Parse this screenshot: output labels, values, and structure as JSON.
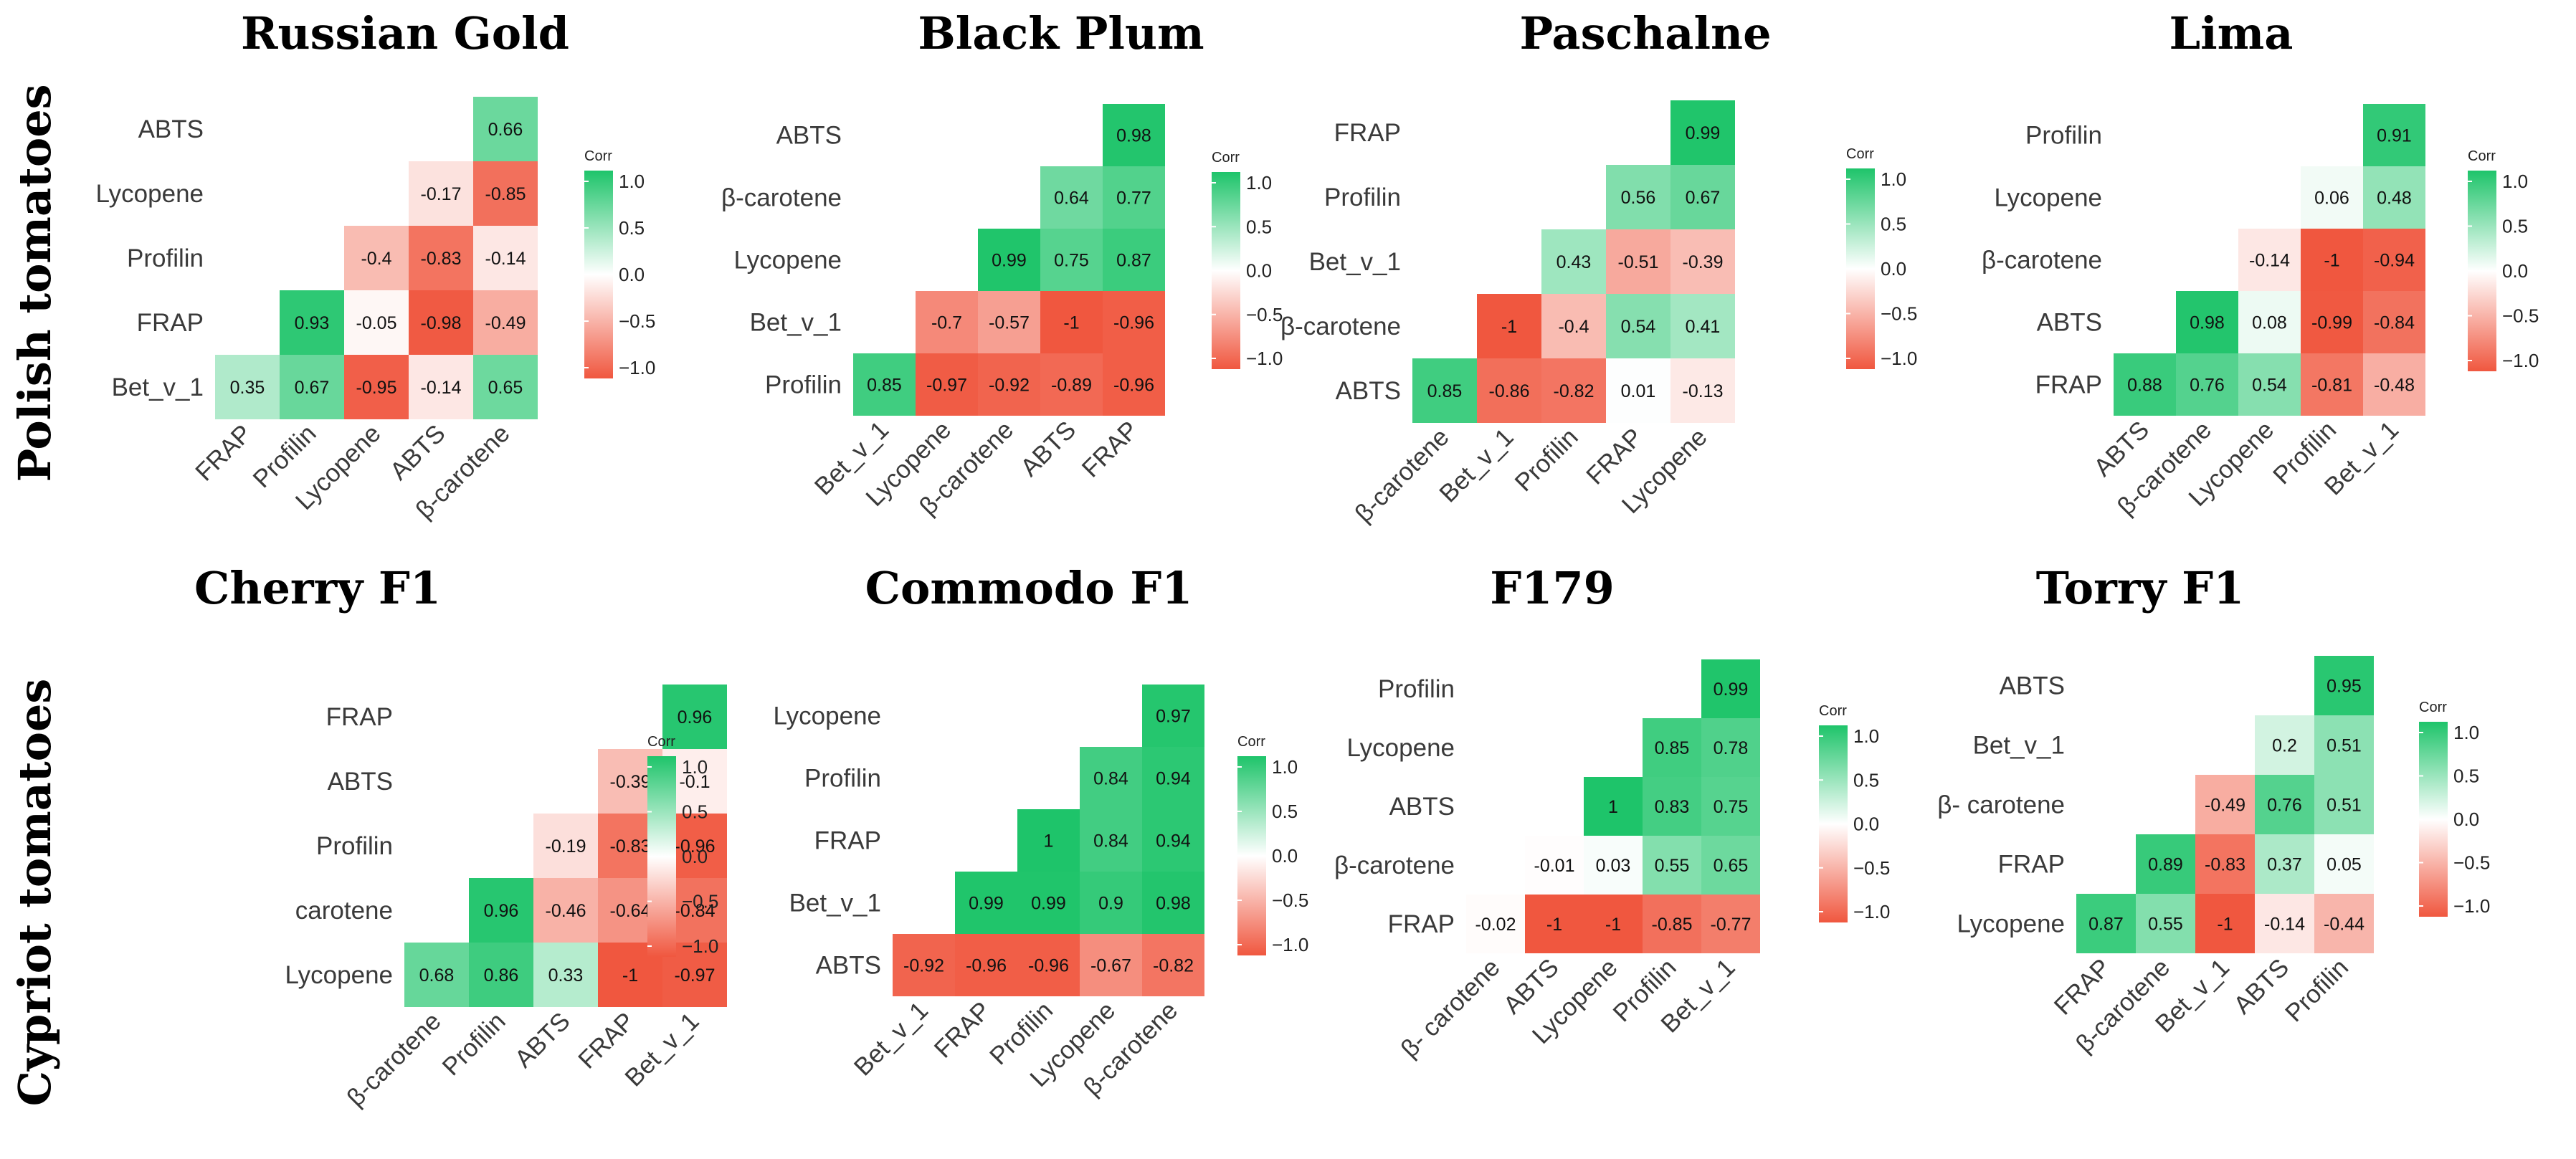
{
  "figure": {
    "row_labels": [
      "Polish tomatoes",
      "Cypriot tomatoes"
    ],
    "legend_title": "Corr",
    "legend_ticks": [
      "1.0",
      "0.5",
      "0.0",
      "−0.5",
      "−1.0"
    ],
    "colors": {
      "positive": "#1ec46a",
      "neutral": "#ffffff",
      "negative": "#f0573f"
    }
  },
  "chart_data": [
    {
      "type": "heatmap",
      "title": "Russian Gold",
      "row": "Polish tomatoes",
      "rows": [
        "ABTS",
        "Lycopene",
        "Profilin",
        "FRAP",
        "Bet_v_1"
      ],
      "cols": [
        "FRAP",
        "Profilin",
        "Lycopene",
        "ABTS",
        "β-carotene"
      ],
      "values": [
        [
          null,
          null,
          null,
          null,
          0.66
        ],
        [
          null,
          null,
          null,
          -0.17,
          -0.85
        ],
        [
          null,
          null,
          -0.4,
          -0.83,
          -0.14
        ],
        [
          null,
          0.93,
          -0.05,
          -0.98,
          -0.49
        ],
        [
          0.35,
          0.67,
          -0.95,
          -0.14,
          0.65
        ]
      ],
      "labels": [
        [
          null,
          null,
          null,
          null,
          "0.66"
        ],
        [
          null,
          null,
          null,
          "-0.17",
          "-0.85"
        ],
        [
          null,
          null,
          "-0.4",
          "-0.83",
          "-0.14"
        ],
        [
          null,
          "0.93",
          "-0.05",
          "-0.98",
          "-0.49"
        ],
        [
          "0.35",
          "0.67",
          "-0.95",
          "-0.14",
          "0.65"
        ]
      ],
      "color_range": [
        -1,
        1
      ]
    },
    {
      "type": "heatmap",
      "title": "Black Plum",
      "row": "Polish tomatoes",
      "rows": [
        "ABTS",
        "β-carotene",
        "Lycopene",
        "Bet_v_1",
        "Profilin"
      ],
      "cols": [
        "Bet_v_1",
        "Lycopene",
        "β-carotene",
        "ABTS",
        "FRAP"
      ],
      "values": [
        [
          null,
          null,
          null,
          null,
          0.98
        ],
        [
          null,
          null,
          null,
          0.64,
          0.77
        ],
        [
          null,
          null,
          0.99,
          0.75,
          0.87
        ],
        [
          null,
          -0.7,
          -0.57,
          -1,
          -0.96
        ],
        [
          0.85,
          -0.97,
          -0.92,
          -0.89,
          -0.96
        ]
      ],
      "labels": [
        [
          null,
          null,
          null,
          null,
          "0.98"
        ],
        [
          null,
          null,
          null,
          "0.64",
          "0.77"
        ],
        [
          null,
          null,
          "0.99",
          "0.75",
          "0.87"
        ],
        [
          null,
          "-0.7",
          "-0.57",
          "-1",
          "-0.96"
        ],
        [
          "0.85",
          "-0.97",
          "-0.92",
          "-0.89",
          "-0.96"
        ]
      ],
      "color_range": [
        -1,
        1
      ]
    },
    {
      "type": "heatmap",
      "title": "Paschalne",
      "row": "Polish tomatoes",
      "rows": [
        "FRAP",
        "Profilin",
        "Bet_v_1",
        "β-carotene",
        "ABTS"
      ],
      "cols": [
        "β-carotene",
        "Bet_v_1",
        "Profilin",
        "FRAP",
        "Lycopene"
      ],
      "values": [
        [
          null,
          null,
          null,
          null,
          0.99
        ],
        [
          null,
          null,
          null,
          0.56,
          0.67
        ],
        [
          null,
          null,
          0.43,
          -0.51,
          -0.39
        ],
        [
          null,
          -1,
          -0.4,
          0.54,
          0.41
        ],
        [
          0.85,
          -0.86,
          -0.82,
          0.01,
          -0.13
        ]
      ],
      "labels": [
        [
          null,
          null,
          null,
          null,
          "0.99"
        ],
        [
          null,
          null,
          null,
          "0.56",
          "0.67"
        ],
        [
          null,
          null,
          "0.43",
          "-0.51",
          "-0.39"
        ],
        [
          null,
          "-1",
          "-0.4",
          "0.54",
          "0.41"
        ],
        [
          "0.85",
          "-0.86",
          "-0.82",
          "0.01",
          "-0.13"
        ]
      ],
      "color_range": [
        -1,
        1
      ]
    },
    {
      "type": "heatmap",
      "title": "Lima",
      "row": "Polish tomatoes",
      "rows": [
        "Profilin",
        "Lycopene",
        "β-carotene",
        "ABTS",
        "FRAP"
      ],
      "cols": [
        "ABTS",
        "β-carotene",
        "Lycopene",
        "Profilin",
        "Bet_v_1"
      ],
      "values": [
        [
          null,
          null,
          null,
          null,
          0.91
        ],
        [
          null,
          null,
          null,
          0.06,
          0.48
        ],
        [
          null,
          null,
          -0.14,
          -1,
          -0.94
        ],
        [
          null,
          0.98,
          0.08,
          -0.99,
          -0.84
        ],
        [
          0.88,
          0.76,
          0.54,
          -0.81,
          -0.48
        ]
      ],
      "labels": [
        [
          null,
          null,
          null,
          null,
          "0.91"
        ],
        [
          null,
          null,
          null,
          "0.06",
          "0.48"
        ],
        [
          null,
          null,
          "-0.14",
          "-1",
          "-0.94"
        ],
        [
          null,
          "0.98",
          "0.08",
          "-0.99",
          "-0.84"
        ],
        [
          "0.88",
          "0.76",
          "0.54",
          "-0.81",
          "-0.48"
        ]
      ],
      "color_range": [
        -1,
        1
      ]
    },
    {
      "type": "heatmap",
      "title": "Cherry F1",
      "row": "Cypriot tomatoes",
      "rows": [
        "FRAP",
        "ABTS",
        "Profilin",
        "carotene",
        "Lycopene"
      ],
      "cols": [
        "β-carotene",
        "Profilin",
        "ABTS",
        "FRAP",
        "Bet_v_1"
      ],
      "values": [
        [
          null,
          null,
          null,
          null,
          0.96
        ],
        [
          null,
          null,
          null,
          -0.39,
          -0.1
        ],
        [
          null,
          null,
          -0.19,
          -0.83,
          -0.96
        ],
        [
          null,
          0.96,
          -0.46,
          -0.64,
          -0.84
        ],
        [
          0.68,
          0.86,
          0.33,
          -1,
          -0.97
        ]
      ],
      "labels": [
        [
          null,
          null,
          null,
          null,
          "0.96"
        ],
        [
          null,
          null,
          null,
          "-0.39",
          "-0.1"
        ],
        [
          null,
          null,
          "-0.19",
          "-0.83",
          "-0.96"
        ],
        [
          null,
          "0.96",
          "-0.46",
          "-0.64",
          "-0.84"
        ],
        [
          "0.68",
          "0.86",
          "0.33",
          "-1",
          "-0.97"
        ]
      ],
      "color_range": [
        -1,
        1
      ]
    },
    {
      "type": "heatmap",
      "title": "Commodo F1",
      "row": "Cypriot tomatoes",
      "rows": [
        "Lycopene",
        "Profilin",
        "FRAP",
        "Bet_v_1",
        "ABTS"
      ],
      "cols": [
        "Bet_v_1",
        "FRAP",
        "Profilin",
        "Lycopene",
        "β-carotene"
      ],
      "values": [
        [
          null,
          null,
          null,
          null,
          0.97
        ],
        [
          null,
          null,
          null,
          0.84,
          0.94
        ],
        [
          null,
          null,
          1,
          0.84,
          0.94
        ],
        [
          null,
          0.99,
          0.99,
          0.9,
          0.98
        ],
        [
          -0.92,
          -0.96,
          -0.96,
          -0.67,
          -0.82
        ]
      ],
      "labels": [
        [
          null,
          null,
          null,
          null,
          "0.97"
        ],
        [
          null,
          null,
          null,
          "0.84",
          "0.94"
        ],
        [
          null,
          null,
          "1",
          "0.84",
          "0.94"
        ],
        [
          null,
          "0.99",
          "0.99",
          "0.9",
          "0.98"
        ],
        [
          "-0.92",
          "-0.96",
          "-0.96",
          "-0.67",
          "-0.82"
        ]
      ],
      "color_range": [
        -1,
        1
      ]
    },
    {
      "type": "heatmap",
      "title": "F179",
      "row": "Cypriot tomatoes",
      "rows": [
        "Profilin",
        "Lycopene",
        "ABTS",
        "β-carotene",
        "FRAP"
      ],
      "cols": [
        "β- carotene",
        "ABTS",
        "Lycopene",
        "Profilin",
        "Bet_v_1"
      ],
      "values": [
        [
          null,
          null,
          null,
          null,
          0.99
        ],
        [
          null,
          null,
          null,
          0.85,
          0.78
        ],
        [
          null,
          null,
          1,
          0.83,
          0.75
        ],
        [
          null,
          -0.01,
          0.03,
          0.55,
          0.65
        ],
        [
          -0.02,
          -1,
          -1,
          -0.85,
          -0.77
        ]
      ],
      "labels": [
        [
          null,
          null,
          null,
          null,
          "0.99"
        ],
        [
          null,
          null,
          null,
          "0.85",
          "0.78"
        ],
        [
          null,
          null,
          "1",
          "0.83",
          "0.75"
        ],
        [
          null,
          "-0.01",
          "0.03",
          "0.55",
          "0.65"
        ],
        [
          "-0.02",
          "-1",
          "-1",
          "-0.85",
          "-0.77"
        ]
      ],
      "color_range": [
        -1,
        1
      ]
    },
    {
      "type": "heatmap",
      "title": "Torry F1",
      "row": "Cypriot tomatoes",
      "rows": [
        "ABTS",
        "Bet_v_1",
        "β- carotene",
        "FRAP",
        "Lycopene"
      ],
      "cols": [
        "FRAP",
        "β-carotene",
        "Bet_v_1",
        "ABTS",
        "Profilin"
      ],
      "values": [
        [
          null,
          null,
          null,
          null,
          0.95
        ],
        [
          null,
          null,
          null,
          0.2,
          0.51
        ],
        [
          null,
          null,
          -0.49,
          0.76,
          0.51
        ],
        [
          null,
          0.89,
          -0.83,
          0.37,
          0.05
        ],
        [
          0.87,
          0.55,
          -1,
          -0.14,
          -0.44
        ]
      ],
      "labels": [
        [
          null,
          null,
          null,
          null,
          "0.95"
        ],
        [
          null,
          null,
          null,
          "0.2",
          "0.51"
        ],
        [
          null,
          null,
          "-0.49",
          "0.76",
          "0.51"
        ],
        [
          null,
          "0.89",
          "-0.83",
          "0.37",
          "0.05"
        ],
        [
          "0.87",
          "0.55",
          "-1",
          "-0.14",
          "-0.44"
        ]
      ],
      "color_range": [
        -1,
        1
      ]
    }
  ]
}
